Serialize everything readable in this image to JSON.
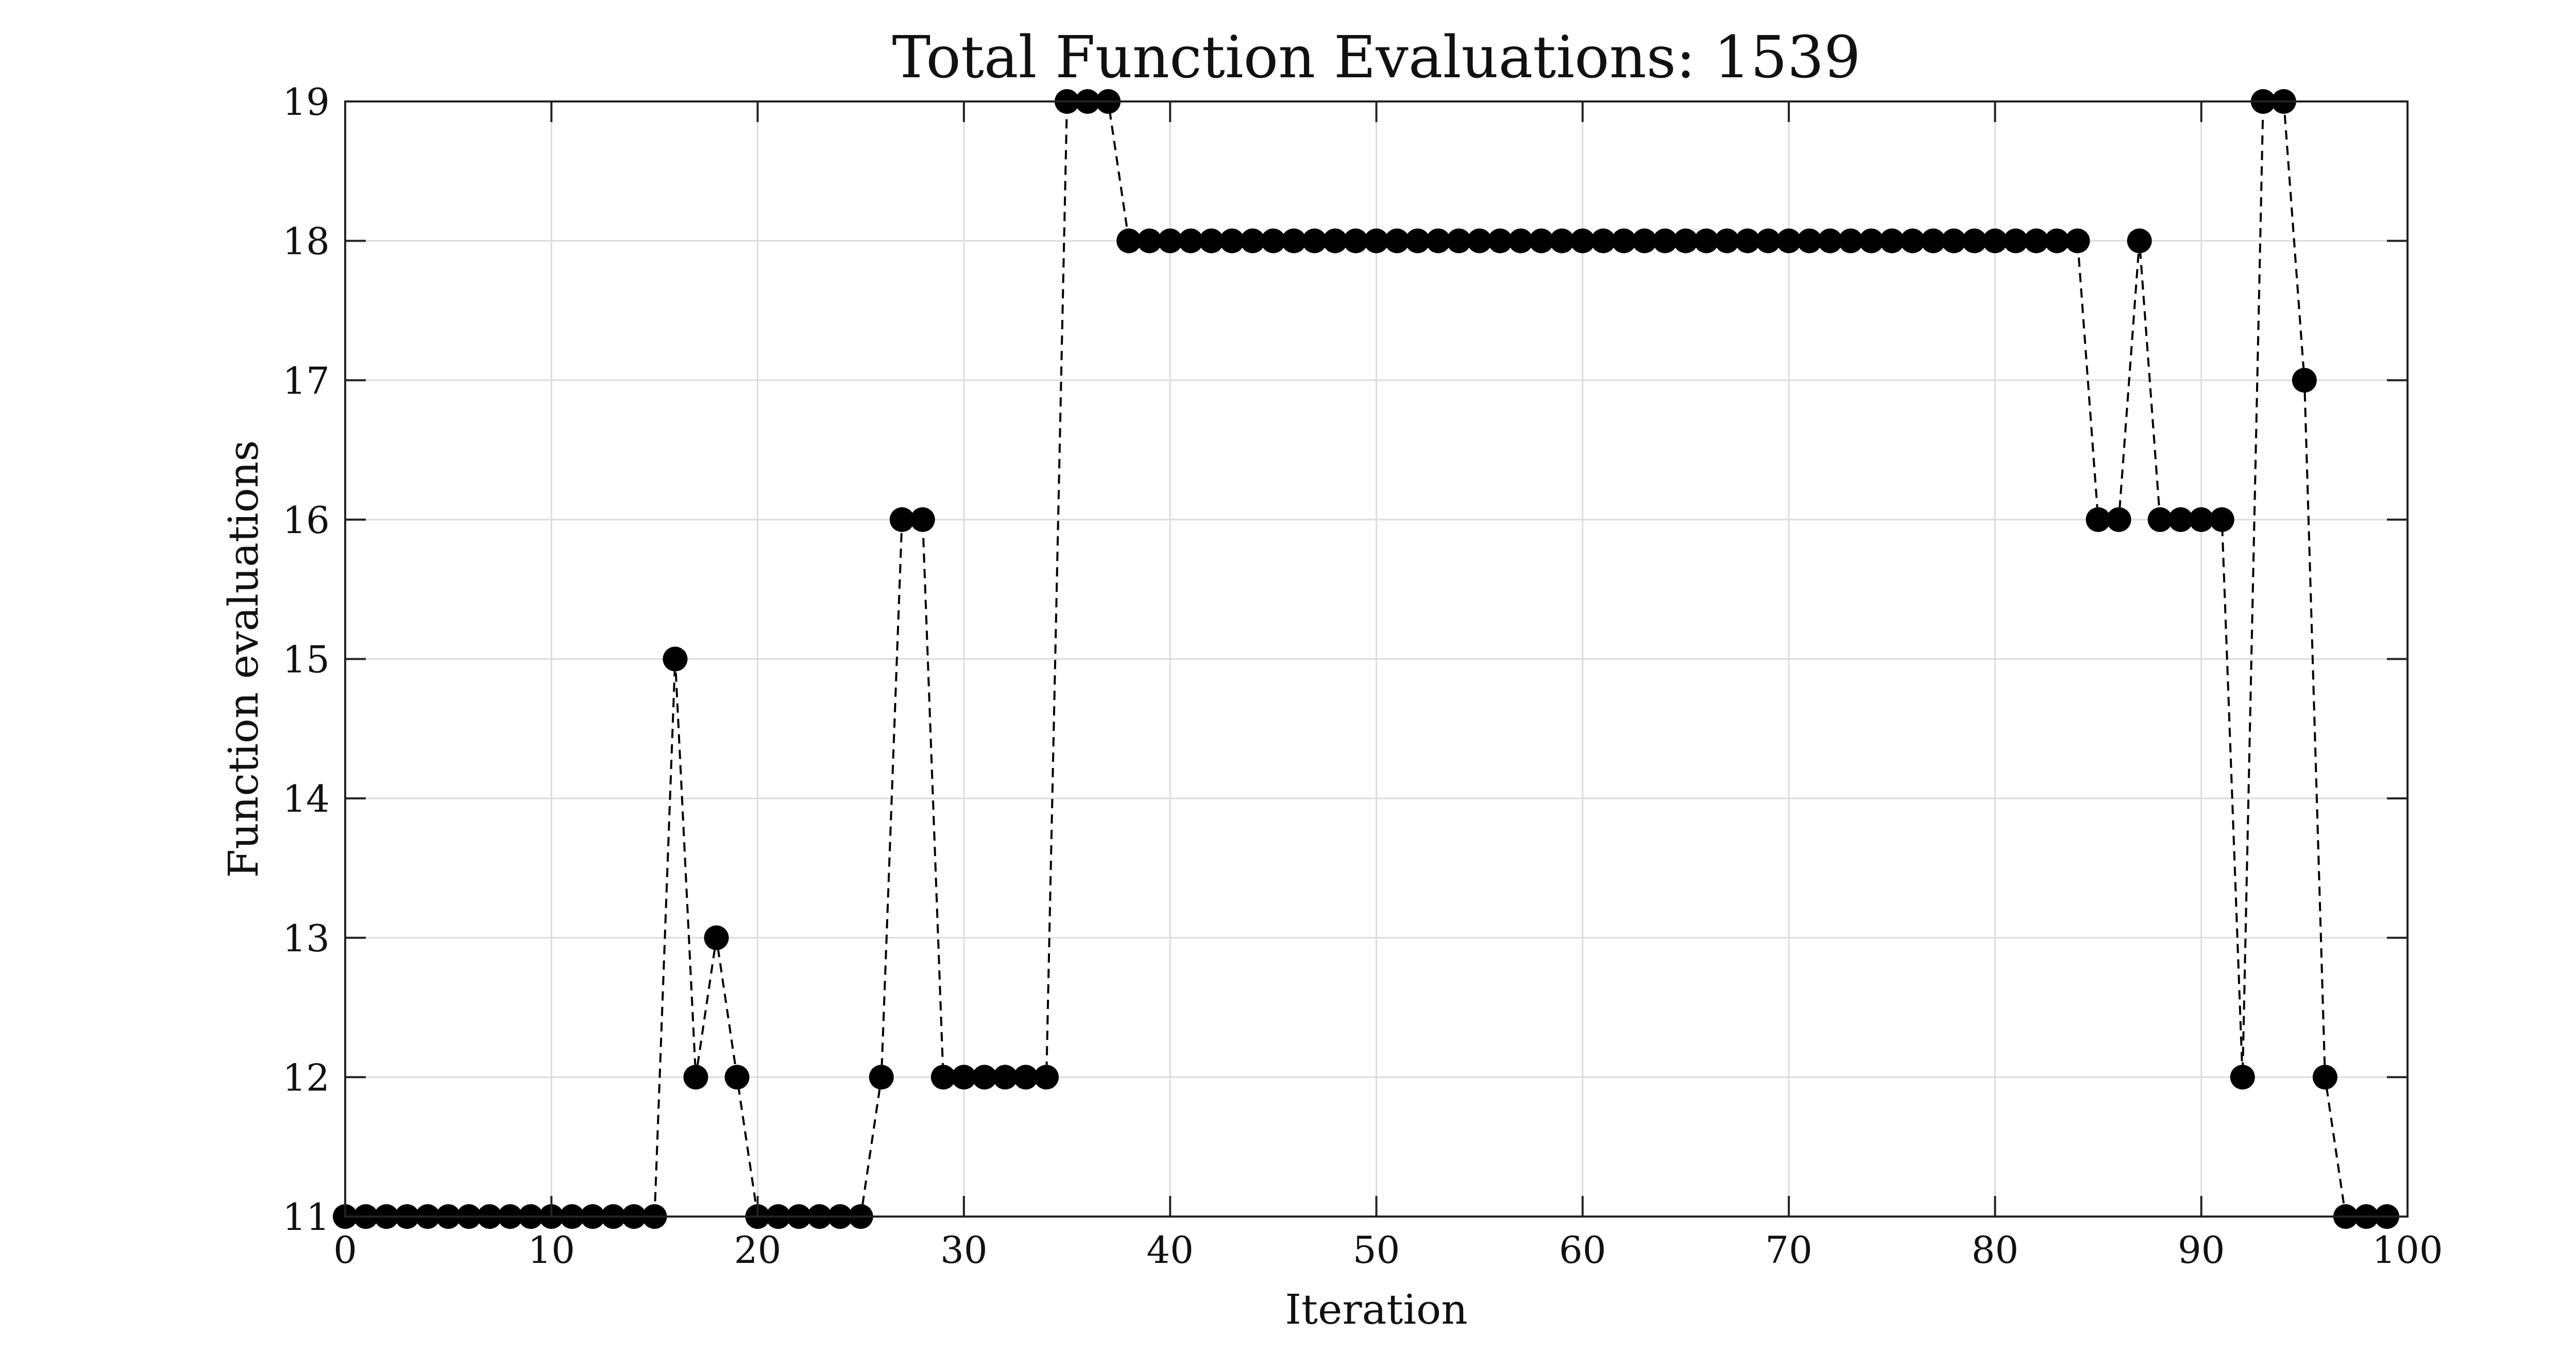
{
  "chart_data": {
    "type": "line",
    "title": "Total Function Evaluations: 1539",
    "xlabel": "Iteration",
    "ylabel": "Function evaluations",
    "xlim": [
      0,
      100
    ],
    "ylim": [
      11,
      19
    ],
    "xticks": [
      0,
      10,
      20,
      30,
      40,
      50,
      60,
      70,
      80,
      90,
      100
    ],
    "yticks": [
      11,
      12,
      13,
      14,
      15,
      16,
      17,
      18,
      19
    ],
    "grid": true,
    "line_style": "dashed",
    "marker": "filled-circle",
    "color": "#000000",
    "x": [
      0,
      1,
      2,
      3,
      4,
      5,
      6,
      7,
      8,
      9,
      10,
      11,
      12,
      13,
      14,
      15,
      16,
      17,
      18,
      19,
      20,
      21,
      22,
      23,
      24,
      25,
      26,
      27,
      28,
      29,
      30,
      31,
      32,
      33,
      34,
      35,
      36,
      37,
      38,
      39,
      40,
      41,
      42,
      43,
      44,
      45,
      46,
      47,
      48,
      49,
      50,
      51,
      52,
      53,
      54,
      55,
      56,
      57,
      58,
      59,
      60,
      61,
      62,
      63,
      64,
      65,
      66,
      67,
      68,
      69,
      70,
      71,
      72,
      73,
      74,
      75,
      76,
      77,
      78,
      79,
      80,
      81,
      82,
      83,
      84,
      85,
      86,
      87,
      88,
      89,
      90,
      91,
      92,
      93,
      94,
      95,
      96,
      97,
      98,
      99
    ],
    "values": [
      11,
      11,
      11,
      11,
      11,
      11,
      11,
      11,
      11,
      11,
      11,
      11,
      11,
      11,
      11,
      11,
      15,
      12,
      13,
      12,
      11,
      11,
      11,
      11,
      11,
      11,
      12,
      16,
      16,
      12,
      12,
      12,
      12,
      12,
      12,
      19,
      19,
      19,
      18,
      18,
      18,
      18,
      18,
      18,
      18,
      18,
      18,
      18,
      18,
      18,
      18,
      18,
      18,
      18,
      18,
      18,
      18,
      18,
      18,
      18,
      18,
      18,
      18,
      18,
      18,
      18,
      18,
      18,
      18,
      18,
      18,
      18,
      18,
      18,
      18,
      18,
      18,
      18,
      18,
      18,
      18,
      18,
      18,
      18,
      18,
      16,
      16,
      18,
      16,
      16,
      16,
      16,
      12,
      19,
      19,
      17,
      12,
      11,
      11,
      11
    ]
  }
}
